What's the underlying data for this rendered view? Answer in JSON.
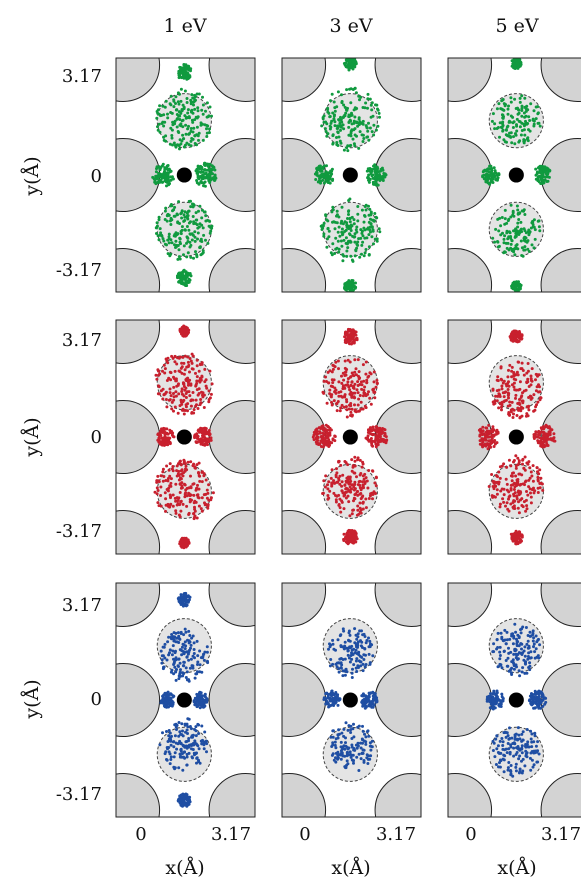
{
  "figure": {
    "column_headers": [
      "1 eV",
      "3 eV",
      "5 eV"
    ],
    "y_axis_label": "y(Å)",
    "x_axis_label": "x(Å)",
    "y_tick_labels": [
      "3.17",
      "0",
      "-3.17"
    ],
    "x_tick_labels": [
      "0",
      "3.17"
    ]
  },
  "colors": {
    "row_1": "#109a3f",
    "row_2": "#c8202e",
    "row_3": "#1f4ea3",
    "atom_fill": "#d3d3d3",
    "atom_stroke": "#222222",
    "center_dot": "#000000"
  },
  "chart_data": {
    "type": "scatter",
    "grid": "3 rows x 3 columns of panels",
    "columns": [
      "1 eV",
      "3 eV",
      "5 eV"
    ],
    "rows": 3,
    "xlabel": "x(Å)",
    "ylabel": "y(Å)",
    "xticks": [
      0,
      3.17
    ],
    "yticks": [
      3.17,
      0,
      -3.17
    ],
    "xlim": [
      -0.9,
      5.0
    ],
    "ylim": [
      -4.2,
      4.2
    ],
    "lattice_atoms": [
      {
        "x": -0.6,
        "y": 3.95
      },
      {
        "x": 4.6,
        "y": 3.95
      },
      {
        "x": -0.6,
        "y": 0
      },
      {
        "x": 4.6,
        "y": 0
      },
      {
        "x": -0.6,
        "y": -3.95
      },
      {
        "x": 4.6,
        "y": -3.95
      }
    ],
    "interstitial_regions": [
      {
        "x": 2.0,
        "y": 1.95
      },
      {
        "x": 2.0,
        "y": -1.95
      }
    ],
    "center_atom": {
      "x": 2.0,
      "y": 0
    },
    "panels": [
      {
        "row": 1,
        "column": "1 eV",
        "color": "#109a3f",
        "spread": 0.9,
        "clusters": [
          {
            "x": 2.0,
            "y": 2.0,
            "r": 1.15
          },
          {
            "x": 2.0,
            "y": -2.0,
            "r": 1.15
          },
          {
            "x": 1.1,
            "y": 0,
            "r": 0.45
          },
          {
            "x": 2.9,
            "y": 0,
            "r": 0.45
          },
          {
            "x": 2.0,
            "y": 3.7,
            "r": 0.3
          },
          {
            "x": 2.0,
            "y": -3.7,
            "r": 0.3
          }
        ]
      },
      {
        "row": 1,
        "column": "3 eV",
        "color": "#109a3f",
        "spread": 0.85,
        "clusters": [
          {
            "x": 2.0,
            "y": 2.0,
            "r": 1.2
          },
          {
            "x": 2.0,
            "y": -2.0,
            "r": 1.2
          },
          {
            "x": 0.9,
            "y": 0,
            "r": 0.4
          },
          {
            "x": 3.1,
            "y": 0,
            "r": 0.4
          },
          {
            "x": 2.0,
            "y": 4.0,
            "r": 0.25
          },
          {
            "x": 2.0,
            "y": -4.0,
            "r": 0.25
          }
        ]
      },
      {
        "row": 1,
        "column": "5 eV",
        "color": "#109a3f",
        "spread": 0.7,
        "clusters": [
          {
            "x": 2.0,
            "y": 2.0,
            "r": 1.0
          },
          {
            "x": 2.0,
            "y": -2.0,
            "r": 1.0
          },
          {
            "x": 0.9,
            "y": 0,
            "r": 0.35
          },
          {
            "x": 3.1,
            "y": 0,
            "r": 0.35
          },
          {
            "x": 2.0,
            "y": 4.0,
            "r": 0.2
          },
          {
            "x": 2.0,
            "y": -4.0,
            "r": 0.2
          }
        ]
      },
      {
        "row": 2,
        "column": "1 eV",
        "color": "#c8202e",
        "spread": 0.95,
        "clusters": [
          {
            "x": 2.0,
            "y": 1.9,
            "r": 1.2
          },
          {
            "x": 2.0,
            "y": -1.9,
            "r": 1.2
          },
          {
            "x": 1.2,
            "y": 0,
            "r": 0.35
          },
          {
            "x": 2.8,
            "y": 0,
            "r": 0.35
          },
          {
            "x": 2.0,
            "y": 3.8,
            "r": 0.2
          },
          {
            "x": 2.0,
            "y": -3.8,
            "r": 0.2
          }
        ]
      },
      {
        "row": 2,
        "column": "3 eV",
        "color": "#c8202e",
        "spread": 0.9,
        "clusters": [
          {
            "x": 2.0,
            "y": 1.8,
            "r": 1.15
          },
          {
            "x": 2.0,
            "y": -1.8,
            "r": 1.15
          },
          {
            "x": 0.9,
            "y": 0,
            "r": 0.45
          },
          {
            "x": 3.1,
            "y": 0,
            "r": 0.45
          },
          {
            "x": 2.0,
            "y": 3.6,
            "r": 0.3
          },
          {
            "x": 2.0,
            "y": -3.6,
            "r": 0.3
          }
        ]
      },
      {
        "row": 2,
        "column": "5 eV",
        "color": "#c8202e",
        "spread": 0.85,
        "clusters": [
          {
            "x": 2.0,
            "y": 1.7,
            "r": 1.1
          },
          {
            "x": 2.0,
            "y": -1.7,
            "r": 1.1
          },
          {
            "x": 0.8,
            "y": 0,
            "r": 0.45
          },
          {
            "x": 3.2,
            "y": 0,
            "r": 0.45
          },
          {
            "x": 2.0,
            "y": 3.6,
            "r": 0.25
          },
          {
            "x": 2.0,
            "y": -3.6,
            "r": 0.25
          }
        ]
      },
      {
        "row": 3,
        "column": "1 eV",
        "color": "#1f4ea3",
        "spread": 0.8,
        "clusters": [
          {
            "x": 2.0,
            "y": 1.6,
            "r": 1.0
          },
          {
            "x": 2.0,
            "y": -1.6,
            "r": 1.0
          },
          {
            "x": 1.3,
            "y": 0,
            "r": 0.3
          },
          {
            "x": 2.7,
            "y": 0,
            "r": 0.3
          },
          {
            "x": 2.0,
            "y": 3.6,
            "r": 0.25
          },
          {
            "x": 2.0,
            "y": -3.6,
            "r": 0.25
          }
        ]
      },
      {
        "row": 3,
        "column": "3 eV",
        "color": "#1f4ea3",
        "spread": 0.7,
        "clusters": [
          {
            "x": 2.0,
            "y": 1.7,
            "r": 0.95
          },
          {
            "x": 2.0,
            "y": -1.7,
            "r": 0.95
          },
          {
            "x": 1.2,
            "y": 0,
            "r": 0.35
          },
          {
            "x": 2.8,
            "y": 0,
            "r": 0.35
          }
        ]
      },
      {
        "row": 3,
        "column": "5 eV",
        "color": "#1f4ea3",
        "spread": 0.75,
        "clusters": [
          {
            "x": 2.0,
            "y": 1.8,
            "r": 1.0
          },
          {
            "x": 2.0,
            "y": -1.8,
            "r": 1.0
          },
          {
            "x": 1.1,
            "y": 0,
            "r": 0.35
          },
          {
            "x": 2.9,
            "y": 0,
            "r": 0.35
          }
        ]
      }
    ]
  }
}
